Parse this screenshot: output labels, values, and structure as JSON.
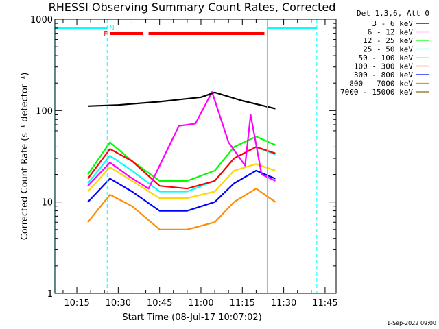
{
  "chart_data": {
    "type": "line",
    "title": "RHESSI Observing Summary Count Rates, Corrected",
    "xlabel": "Start Time (08-Jul-17 10:07:02)",
    "ylabel": "Corrected Count Rate (s⁻¹ detector⁻¹)",
    "yscale": "log",
    "xlim": [
      "10:07:02",
      "11:49:00"
    ],
    "ylim": [
      1,
      1000
    ],
    "x_ticks": [
      "10:15",
      "10:30",
      "10:45",
      "11:00",
      "11:15",
      "11:30",
      "11:45"
    ],
    "y_ticks": [
      "1",
      "10",
      "100",
      "1000"
    ],
    "legend_title": "Det 1,3,6, Att 0",
    "legend_position": "right",
    "series": [
      {
        "name": "3 - 6 keV",
        "color": "#000000",
        "x": [
          "10:19",
          "10:30",
          "10:45",
          "11:00",
          "11:05",
          "11:15",
          "11:27"
        ],
        "values": [
          112,
          115,
          125,
          140,
          158,
          128,
          105
        ]
      },
      {
        "name": "6 - 12 keV",
        "color": "#ff00ff",
        "x": [
          "10:19",
          "10:27",
          "10:34",
          "10:41",
          "10:45",
          "10:52",
          "10:58",
          "11:04",
          "11:10",
          "11:16",
          "11:18",
          "11:22",
          "11:27"
        ],
        "values": [
          15,
          27,
          19,
          14,
          25,
          68,
          72,
          160,
          45,
          25,
          90,
          20,
          17
        ]
      },
      {
        "name": "12 - 25 keV",
        "color": "#00ff00",
        "x": [
          "10:19",
          "10:27",
          "10:35",
          "10:45",
          "10:55",
          "11:05",
          "11:12",
          "11:20",
          "11:27"
        ],
        "values": [
          20,
          45,
          28,
          17,
          17,
          22,
          40,
          52,
          42
        ]
      },
      {
        "name": "25 - 50 keV",
        "color": "#00ffff",
        "x": [
          "10:19",
          "10:27",
          "10:35",
          "10:45",
          "10:55",
          "11:05",
          "11:12",
          "11:20",
          "11:27"
        ],
        "values": [
          16,
          32,
          22,
          13,
          13,
          17,
          30,
          40,
          33
        ]
      },
      {
        "name": "50 - 100 keV",
        "color": "#ffd700",
        "x": [
          "10:19",
          "10:27",
          "10:35",
          "10:45",
          "10:55",
          "11:05",
          "11:12",
          "11:20",
          "11:27"
        ],
        "values": [
          13,
          24,
          17,
          11,
          11,
          13,
          22,
          26,
          22
        ]
      },
      {
        "name": "100 - 300 keV",
        "color": "#ff0000",
        "x": [
          "10:19",
          "10:27",
          "10:35",
          "10:45",
          "10:55",
          "11:05",
          "11:12",
          "11:20",
          "11:27"
        ],
        "values": [
          18,
          38,
          28,
          15,
          14,
          17,
          30,
          40,
          34
        ]
      },
      {
        "name": "300 - 800 keV",
        "color": "#0000ff",
        "x": [
          "10:19",
          "10:27",
          "10:35",
          "10:45",
          "10:55",
          "11:05",
          "11:12",
          "11:20",
          "11:27"
        ],
        "values": [
          10,
          18,
          13,
          8,
          8,
          10,
          16,
          22,
          18
        ]
      },
      {
        "name": "800 - 7000 keV",
        "color": "#ff8c00",
        "x": [
          "10:19",
          "10:27",
          "10:35",
          "10:45",
          "10:55",
          "11:05",
          "11:12",
          "11:20",
          "11:27"
        ],
        "values": [
          6,
          12,
          9,
          5,
          5,
          6,
          10,
          14,
          10
        ]
      },
      {
        "name": "7000 - 15000 keV",
        "color": "#8b6914",
        "x": [],
        "values": []
      }
    ],
    "annotations": {
      "flags": [
        {
          "label": "F",
          "color": "#ff0000",
          "segments": [
            [
              "10:27",
              "10:39"
            ],
            [
              "10:41",
              "11:23"
            ]
          ]
        },
        {
          "label": "N",
          "color": "#00ffff",
          "segments": [
            [
              "10:07",
              "10:26"
            ],
            [
              "11:24",
              "11:42"
            ]
          ]
        }
      ],
      "solid_vlines": [
        "10:07",
        "11:24"
      ],
      "dashed_vlines": [
        "10:26",
        "11:42"
      ],
      "timestamp": "1-Sep-2022 09:00"
    }
  }
}
